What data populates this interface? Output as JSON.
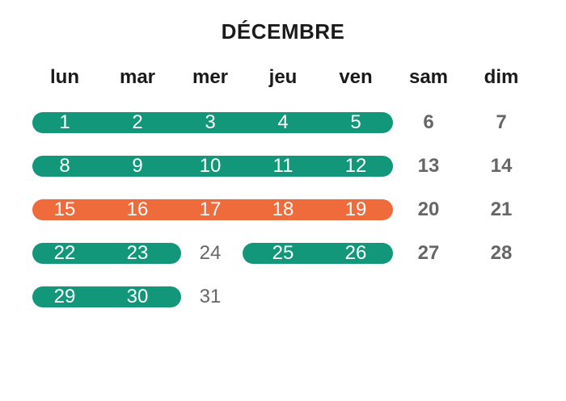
{
  "title": "DÉCEMBRE",
  "weekdays": [
    "lun",
    "mar",
    "mer",
    "jeu",
    "ven",
    "sam",
    "dim"
  ],
  "weeks": [
    [
      "1",
      "2",
      "3",
      "4",
      "5",
      "6",
      "7"
    ],
    [
      "8",
      "9",
      "10",
      "11",
      "12",
      "13",
      "14"
    ],
    [
      "15",
      "16",
      "17",
      "18",
      "19",
      "20",
      "21"
    ],
    [
      "22",
      "23",
      "24",
      "25",
      "26",
      "27",
      "28"
    ],
    [
      "29",
      "30",
      "31"
    ]
  ],
  "highlight_colors": {
    "green": "#12977a",
    "orange": "#ef6b3b"
  }
}
